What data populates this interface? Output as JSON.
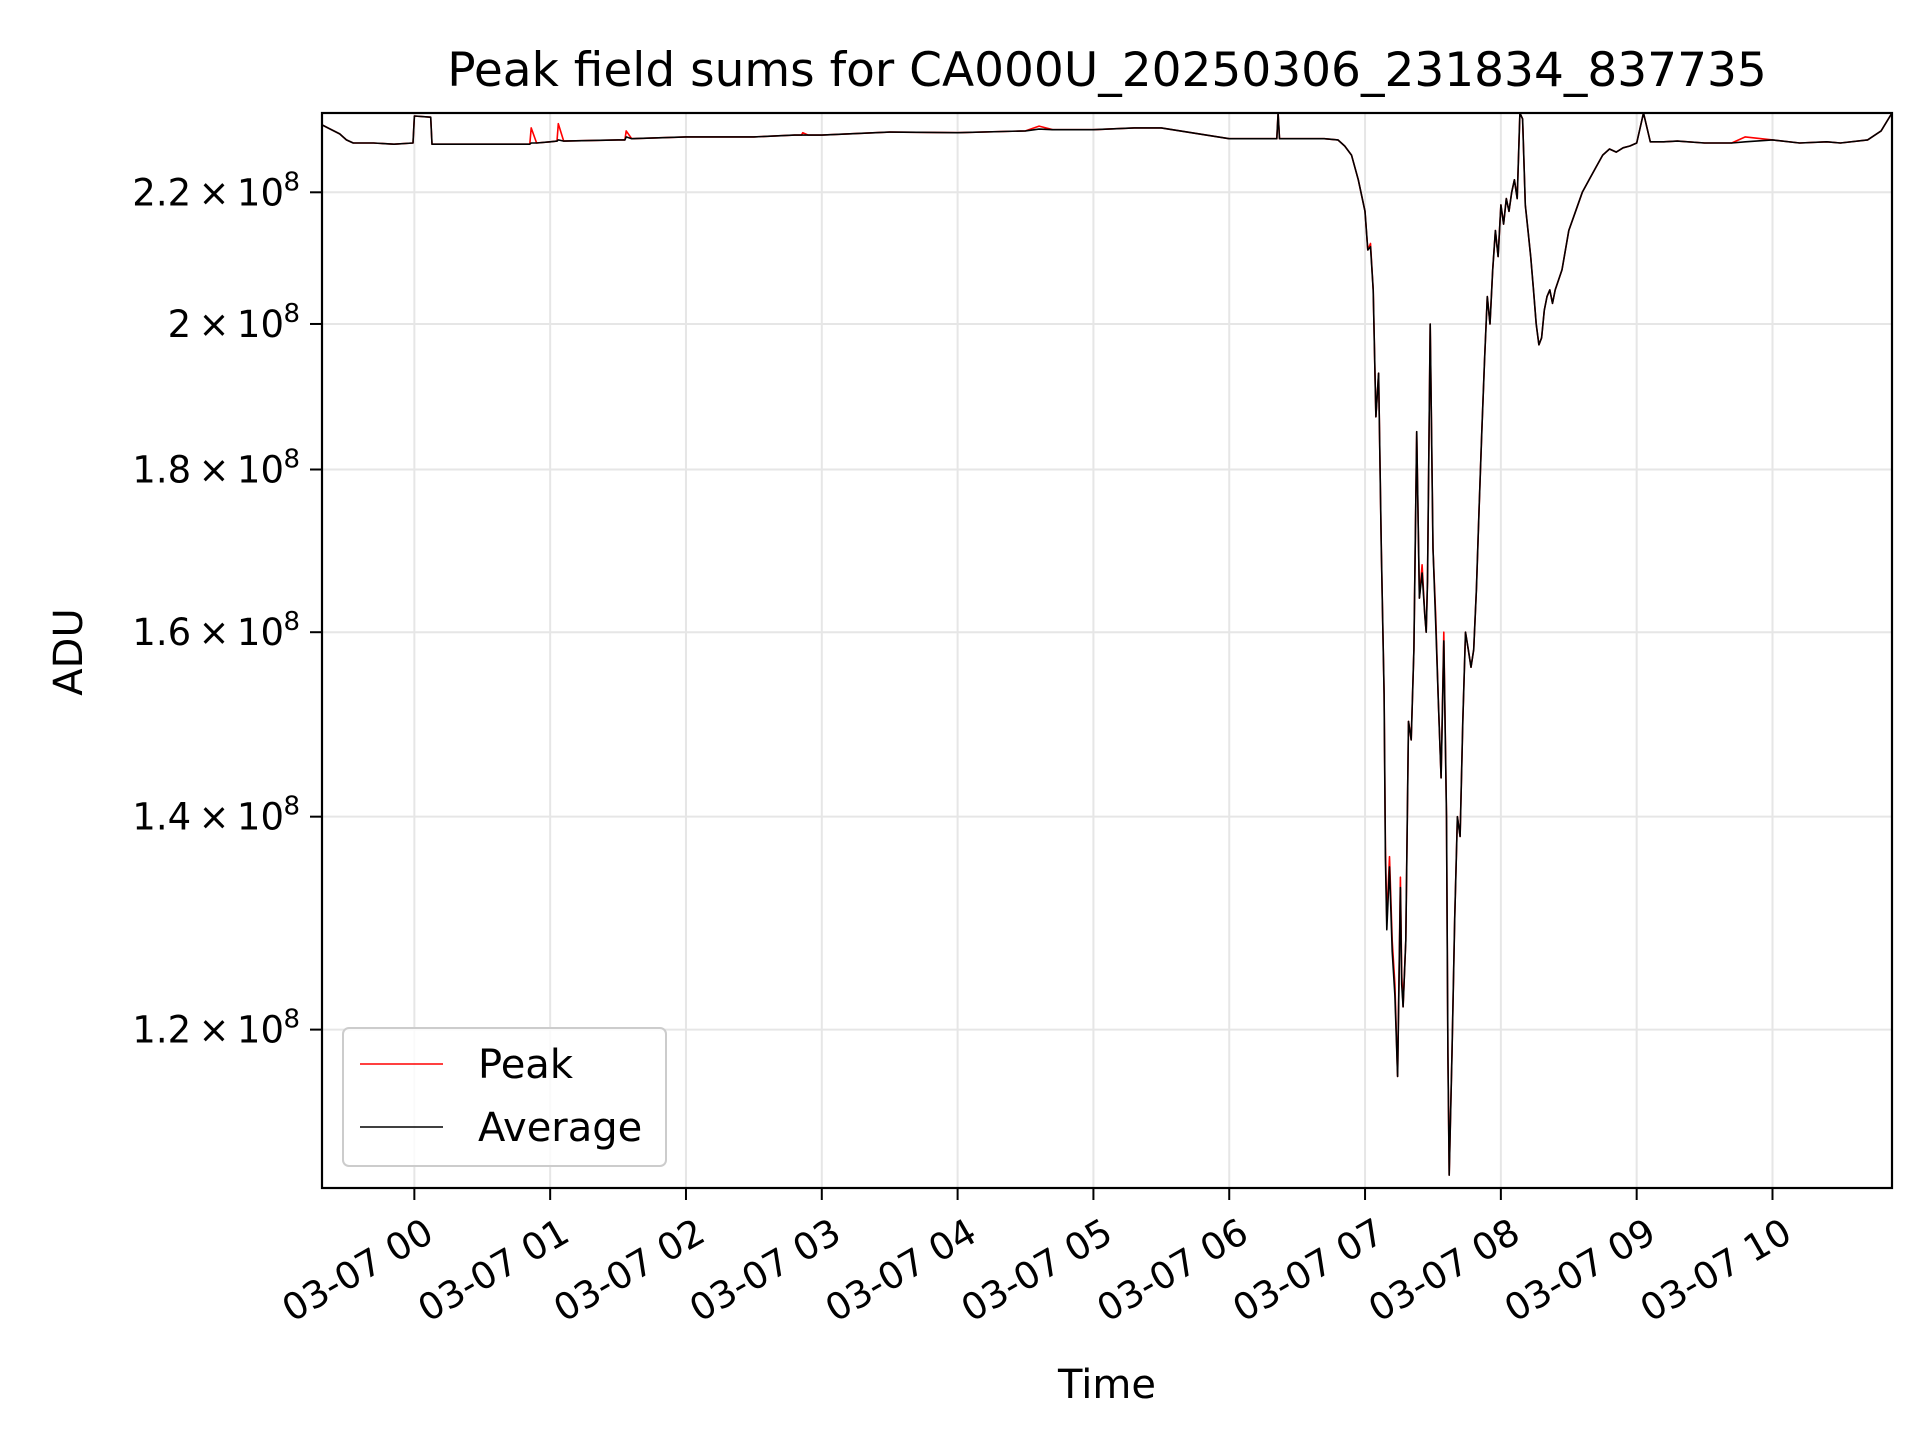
{
  "chart_data": {
    "type": "line",
    "title": "Peak field sums for CA000U_20250306_231834_837735",
    "xlabel": "Time",
    "ylabel": "ADU",
    "x_unit": "hours",
    "x_ticks": [
      0,
      1,
      2,
      3,
      4,
      5,
      6,
      7,
      8,
      9,
      10
    ],
    "x_tick_labels": [
      "03-07 00",
      "03-07 01",
      "03-07 02",
      "03-07 03",
      "03-07 04",
      "03-07 05",
      "03-07 06",
      "03-07 07",
      "03-07 08",
      "03-07 09",
      "03-07 10"
    ],
    "xlim": [
      -0.68,
      10.88
    ],
    "y_scale": "log",
    "ylim": [
      107000000,
      233000000
    ],
    "y_ticks": [
      {
        "value": 120000000,
        "mantissa": "1.2",
        "exponent": "8"
      },
      {
        "value": 140000000,
        "mantissa": "1.4",
        "exponent": "8"
      },
      {
        "value": 160000000,
        "mantissa": "1.6",
        "exponent": "8"
      },
      {
        "value": 180000000,
        "mantissa": "1.8",
        "exponent": "8"
      },
      {
        "value": 200000000,
        "mantissa": "2",
        "exponent": "8"
      },
      {
        "value": 220000000,
        "mantissa": "2.2",
        "exponent": "8"
      }
    ],
    "grid": true,
    "legend_position": "lower-left",
    "series": [
      {
        "name": "Peak",
        "color": "#ff0000",
        "x": [
          -0.68,
          -0.55,
          -0.5,
          -0.45,
          -0.3,
          -0.15,
          -0.01,
          0,
          0.12,
          0.13,
          0.5,
          0.8,
          0.85,
          0.86,
          0.9,
          1.0,
          1.05,
          1.06,
          1.1,
          1.5,
          1.55,
          1.56,
          1.6,
          2.0,
          2.5,
          2.8,
          2.85,
          2.86,
          2.9,
          3.0,
          3.5,
          4.0,
          4.5,
          4.6,
          4.7,
          5.0,
          5.3,
          5.5,
          6.0,
          6.2,
          6.35,
          6.36,
          6.37,
          6.5,
          6.7,
          6.8,
          6.85,
          6.9,
          6.95,
          7.0,
          7.02,
          7.04,
          7.06,
          7.08,
          7.1,
          7.12,
          7.14,
          7.15,
          7.16,
          7.18,
          7.2,
          7.22,
          7.24,
          7.26,
          7.27,
          7.28,
          7.3,
          7.32,
          7.34,
          7.36,
          7.38,
          7.4,
          7.42,
          7.44,
          7.45,
          7.46,
          7.48,
          7.5,
          7.52,
          7.54,
          7.56,
          7.58,
          7.6,
          7.61,
          7.62,
          7.64,
          7.66,
          7.68,
          7.7,
          7.72,
          7.74,
          7.76,
          7.78,
          7.8,
          7.82,
          7.84,
          7.86,
          7.88,
          7.9,
          7.92,
          7.94,
          7.96,
          7.98,
          8.0,
          8.02,
          8.04,
          8.06,
          8.08,
          8.1,
          8.12,
          8.14,
          8.16,
          8.18,
          8.2,
          8.22,
          8.24,
          8.26,
          8.28,
          8.3,
          8.32,
          8.34,
          8.36,
          8.38,
          8.4,
          8.45,
          8.5,
          8.55,
          8.6,
          8.65,
          8.7,
          8.75,
          8.8,
          8.85,
          8.9,
          8.95,
          9.0,
          9.05,
          9.1,
          9.2,
          9.3,
          9.5,
          9.7,
          9.8,
          10.0,
          10.2,
          10.4,
          10.5,
          10.7,
          10.8,
          10.88
        ],
        "y": [
          231000000,
          229500000,
          228500000,
          228000000,
          228000000,
          227800000,
          228000000,
          232500000,
          232300000,
          227800000,
          227800000,
          227800000,
          227800000,
          230500000,
          228000000,
          228200000,
          228300000,
          231200000,
          228300000,
          228500000,
          228500000,
          230000000,
          228700000,
          229000000,
          229000000,
          229300000,
          229300000,
          229700000,
          229300000,
          229300000,
          229800000,
          229700000,
          230000000,
          230800000,
          230200000,
          230200000,
          230500000,
          230500000,
          228700000,
          228700000,
          228700000,
          233000000,
          228700000,
          228700000,
          228700000,
          228500000,
          227500000,
          226000000,
          222000000,
          217000000,
          211000000,
          212000000,
          205000000,
          187000000,
          193000000,
          170000000,
          153000000,
          137000000,
          130000000,
          136000000,
          128000000,
          124000000,
          116000000,
          134000000,
          125000000,
          122000000,
          128000000,
          150000000,
          148000000,
          158000000,
          185000000,
          164000000,
          168000000,
          162000000,
          160000000,
          166000000,
          200000000,
          170000000,
          162000000,
          152000000,
          144000000,
          160000000,
          140000000,
          118000000,
          108000000,
          118000000,
          130000000,
          140000000,
          138000000,
          150000000,
          160000000,
          158000000,
          156000000,
          158000000,
          165000000,
          175000000,
          185000000,
          195000000,
          204000000,
          200000000,
          208000000,
          214000000,
          210000000,
          218000000,
          215000000,
          219000000,
          217000000,
          220000000,
          222000000,
          219000000,
          233000000,
          232000000,
          218000000,
          214000000,
          210000000,
          205000000,
          200000000,
          197000000,
          198000000,
          202000000,
          204000000,
          205000000,
          203000000,
          205000000,
          208000000,
          214000000,
          217000000,
          220000000,
          222000000,
          224000000,
          226000000,
          227000000,
          226500000,
          227200000,
          227500000,
          228000000,
          233000000,
          228200000,
          228200000,
          228300000,
          228000000,
          228000000,
          229000000,
          228500000,
          228000000,
          228200000,
          228000000,
          228500000,
          230000000,
          233000000
        ]
      },
      {
        "name": "Average",
        "color": "#000000",
        "x": [
          -0.68,
          -0.55,
          -0.5,
          -0.45,
          -0.3,
          -0.15,
          -0.01,
          0,
          0.12,
          0.13,
          0.5,
          0.8,
          0.85,
          0.86,
          0.9,
          1.0,
          1.05,
          1.06,
          1.1,
          1.5,
          1.55,
          1.56,
          1.6,
          2.0,
          2.5,
          2.8,
          2.85,
          2.86,
          2.9,
          3.0,
          3.5,
          4.0,
          4.5,
          4.6,
          4.7,
          5.0,
          5.3,
          5.5,
          6.0,
          6.2,
          6.35,
          6.36,
          6.37,
          6.5,
          6.7,
          6.8,
          6.85,
          6.9,
          6.95,
          7.0,
          7.02,
          7.04,
          7.06,
          7.08,
          7.1,
          7.12,
          7.14,
          7.15,
          7.16,
          7.18,
          7.2,
          7.22,
          7.24,
          7.26,
          7.27,
          7.28,
          7.3,
          7.32,
          7.34,
          7.36,
          7.38,
          7.4,
          7.42,
          7.44,
          7.45,
          7.46,
          7.48,
          7.5,
          7.52,
          7.54,
          7.56,
          7.58,
          7.6,
          7.61,
          7.62,
          7.64,
          7.66,
          7.68,
          7.7,
          7.72,
          7.74,
          7.76,
          7.78,
          7.8,
          7.82,
          7.84,
          7.86,
          7.88,
          7.9,
          7.92,
          7.94,
          7.96,
          7.98,
          8.0,
          8.02,
          8.04,
          8.06,
          8.08,
          8.1,
          8.12,
          8.14,
          8.16,
          8.18,
          8.2,
          8.22,
          8.24,
          8.26,
          8.28,
          8.3,
          8.32,
          8.34,
          8.36,
          8.38,
          8.4,
          8.45,
          8.5,
          8.55,
          8.6,
          8.65,
          8.7,
          8.75,
          8.8,
          8.85,
          8.9,
          8.95,
          9.0,
          9.05,
          9.1,
          9.2,
          9.3,
          9.5,
          9.7,
          9.8,
          10.0,
          10.2,
          10.4,
          10.5,
          10.7,
          10.8,
          10.88
        ],
        "y": [
          231000000,
          229500000,
          228500000,
          228000000,
          228000000,
          227800000,
          228000000,
          232500000,
          232300000,
          227800000,
          227800000,
          227800000,
          227800000,
          228000000,
          228000000,
          228200000,
          228300000,
          228500000,
          228300000,
          228500000,
          228500000,
          229000000,
          228700000,
          229000000,
          229000000,
          229300000,
          229300000,
          229300000,
          229300000,
          229300000,
          229800000,
          229700000,
          230000000,
          230300000,
          230200000,
          230200000,
          230500000,
          230500000,
          228700000,
          228700000,
          228700000,
          233000000,
          228700000,
          228700000,
          228700000,
          228500000,
          227500000,
          226000000,
          222000000,
          217000000,
          211000000,
          211500000,
          205000000,
          187000000,
          193000000,
          170000000,
          153000000,
          136000000,
          129000000,
          135000000,
          127000000,
          123000000,
          116000000,
          133000000,
          124000000,
          122000000,
          128000000,
          150000000,
          148000000,
          158000000,
          185000000,
          164000000,
          167000000,
          162000000,
          160000000,
          166000000,
          200000000,
          170000000,
          161000000,
          152000000,
          144000000,
          159000000,
          140000000,
          118000000,
          108000000,
          118000000,
          130000000,
          140000000,
          138000000,
          150000000,
          160000000,
          158000000,
          156000000,
          158000000,
          165000000,
          175000000,
          185000000,
          195000000,
          204000000,
          200000000,
          208000000,
          214000000,
          210000000,
          218000000,
          215000000,
          219000000,
          217000000,
          220000000,
          222000000,
          219000000,
          233000000,
          232000000,
          218000000,
          214000000,
          210000000,
          205000000,
          200000000,
          197000000,
          198000000,
          202000000,
          204000000,
          205000000,
          203000000,
          205000000,
          208000000,
          214000000,
          217000000,
          220000000,
          222000000,
          224000000,
          226000000,
          227000000,
          226500000,
          227200000,
          227500000,
          228000000,
          233000000,
          228200000,
          228200000,
          228300000,
          228000000,
          228000000,
          228200000,
          228500000,
          228000000,
          228200000,
          228000000,
          228500000,
          230000000,
          233000000
        ]
      }
    ]
  }
}
